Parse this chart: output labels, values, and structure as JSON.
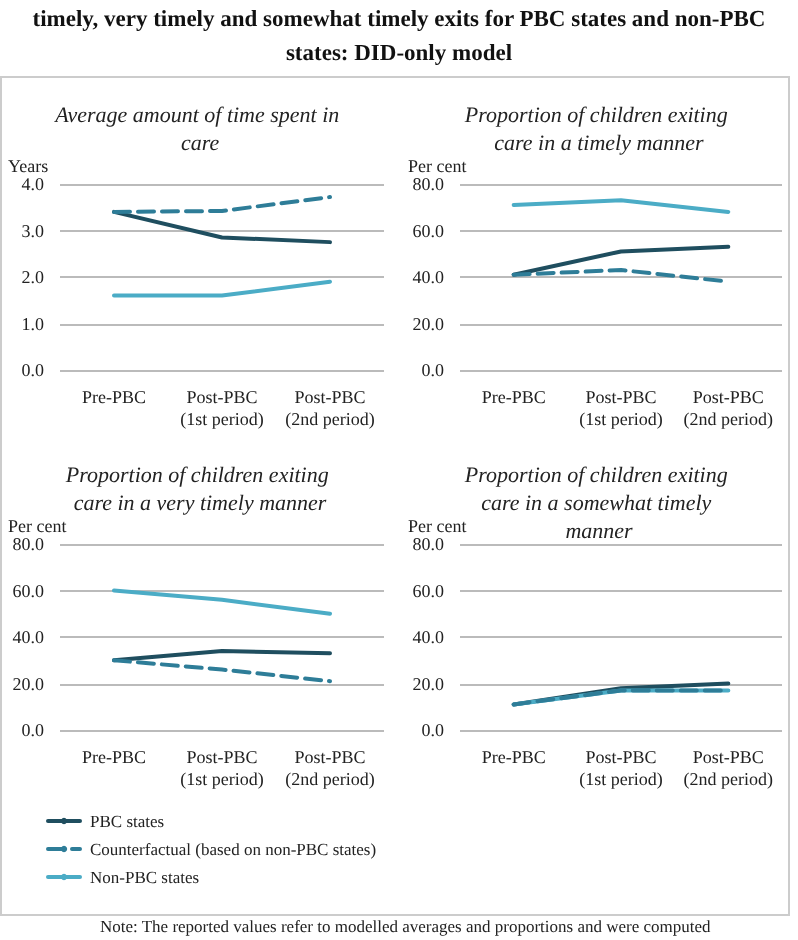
{
  "chart_data": [
    {
      "type": "line",
      "title": "Average amount of time spent in care",
      "annotations": [
        "timely, very timely and somewhat timely exits for PBC states and non-PBC states: DID-only model"
      ],
      "ylabel": "Years",
      "categories": [
        "Pre-PBC",
        "Post-PBC\n(1st period)",
        "Post-PBC\n(2nd period)"
      ],
      "ylim": [
        0,
        4
      ],
      "yticks": [
        {
          "value": 0,
          "label": "0.0"
        },
        {
          "value": 1,
          "label": "1.0"
        },
        {
          "value": 2,
          "label": "2.0"
        },
        {
          "value": 3,
          "label": "3.0"
        },
        {
          "value": 4,
          "label": "4.0"
        }
      ],
      "grid": "y",
      "legend": false,
      "marker": "none",
      "series": [
        {
          "color": "#1f4e5f",
          "line_style": "solid",
          "values": [
            3.4,
            2.85,
            2.75
          ]
        },
        {
          "color": "#2e7d98",
          "line_style": "dashed",
          "values": [
            3.4,
            3.42,
            3.72
          ]
        },
        {
          "color": "#4bacc6",
          "line_style": "solid",
          "values": [
            1.6,
            1.6,
            1.9
          ]
        }
      ]
    },
    {
      "type": "line",
      "title": "Proportion of children exiting care in a timely manner",
      "ylabel": "Per cent",
      "categories": [
        "Pre-PBC",
        "Post-PBC\n(1st period)",
        "Post-PBC\n(2nd period)"
      ],
      "ylim": [
        0,
        80
      ],
      "yticks": [
        {
          "value": 0,
          "label": "0.0"
        },
        {
          "value": 20,
          "label": "20.0"
        },
        {
          "value": 40,
          "label": "40.0"
        },
        {
          "value": 60,
          "label": "60.0"
        },
        {
          "value": 80,
          "label": "80.0"
        }
      ],
      "grid": "y",
      "legend": false,
      "marker": "none",
      "series": [
        {
          "color": "#1f4e5f",
          "line_style": "solid",
          "values": [
            41,
            51,
            53
          ]
        },
        {
          "color": "#2e7d98",
          "line_style": "dashed",
          "values": [
            41,
            43,
            38
          ]
        },
        {
          "color": "#4bacc6",
          "line_style": "solid",
          "values": [
            71,
            73,
            68
          ]
        }
      ]
    },
    {
      "type": "line",
      "title": "Proportion of children exiting care in a very timely manner",
      "ylabel": "Per cent",
      "categories": [
        "Pre-PBC",
        "Post-PBC\n(1st period)",
        "Post-PBC\n(2nd period)"
      ],
      "ylim": [
        0,
        80
      ],
      "yticks": [
        {
          "value": 0,
          "label": "0.0"
        },
        {
          "value": 20,
          "label": "20.0"
        },
        {
          "value": 40,
          "label": "40.0"
        },
        {
          "value": 60,
          "label": "60.0"
        },
        {
          "value": 80,
          "label": "80.0"
        }
      ],
      "grid": "y",
      "legend": "bottom",
      "marker": "none",
      "series": [
        {
          "name": "PBC states",
          "color": "#1f4e5f",
          "line_style": "solid",
          "values": [
            30,
            34,
            33
          ]
        },
        {
          "name": "Counterfactual (based on non-PBC states)",
          "color": "#2e7d98",
          "line_style": "dashed",
          "values": [
            30,
            26,
            21
          ]
        },
        {
          "name": "Non-PBC states",
          "color": "#4bacc6",
          "line_style": "solid",
          "values": [
            60,
            56,
            50
          ]
        }
      ]
    },
    {
      "type": "line",
      "title": "Proportion of children exiting care in a somewhat timely manner",
      "annotations": [
        "Note: The reported values refer to modelled averages and proportions and were computed"
      ],
      "ylabel": "Per cent",
      "categories": [
        "Pre-PBC",
        "Post-PBC\n(1st period)",
        "Post-PBC\n(2nd period)"
      ],
      "ylim": [
        0,
        80
      ],
      "yticks": [
        {
          "value": 0,
          "label": "0.0"
        },
        {
          "value": 20,
          "label": "20.0"
        },
        {
          "value": 40,
          "label": "40.0"
        },
        {
          "value": 60,
          "label": "60.0"
        },
        {
          "value": 80,
          "label": "80.0"
        }
      ],
      "grid": "y",
      "legend": false,
      "marker": "none",
      "series": [
        {
          "color": "#1f4e5f",
          "line_style": "solid",
          "values": [
            11,
            18,
            20
          ]
        },
        {
          "color": "#4bacc6",
          "line_style": "solid",
          "values": [
            11,
            17,
            17
          ]
        },
        {
          "color": "#2e7d98",
          "line_style": "dashed",
          "values": [
            11,
            17,
            17
          ]
        }
      ]
    }
  ]
}
